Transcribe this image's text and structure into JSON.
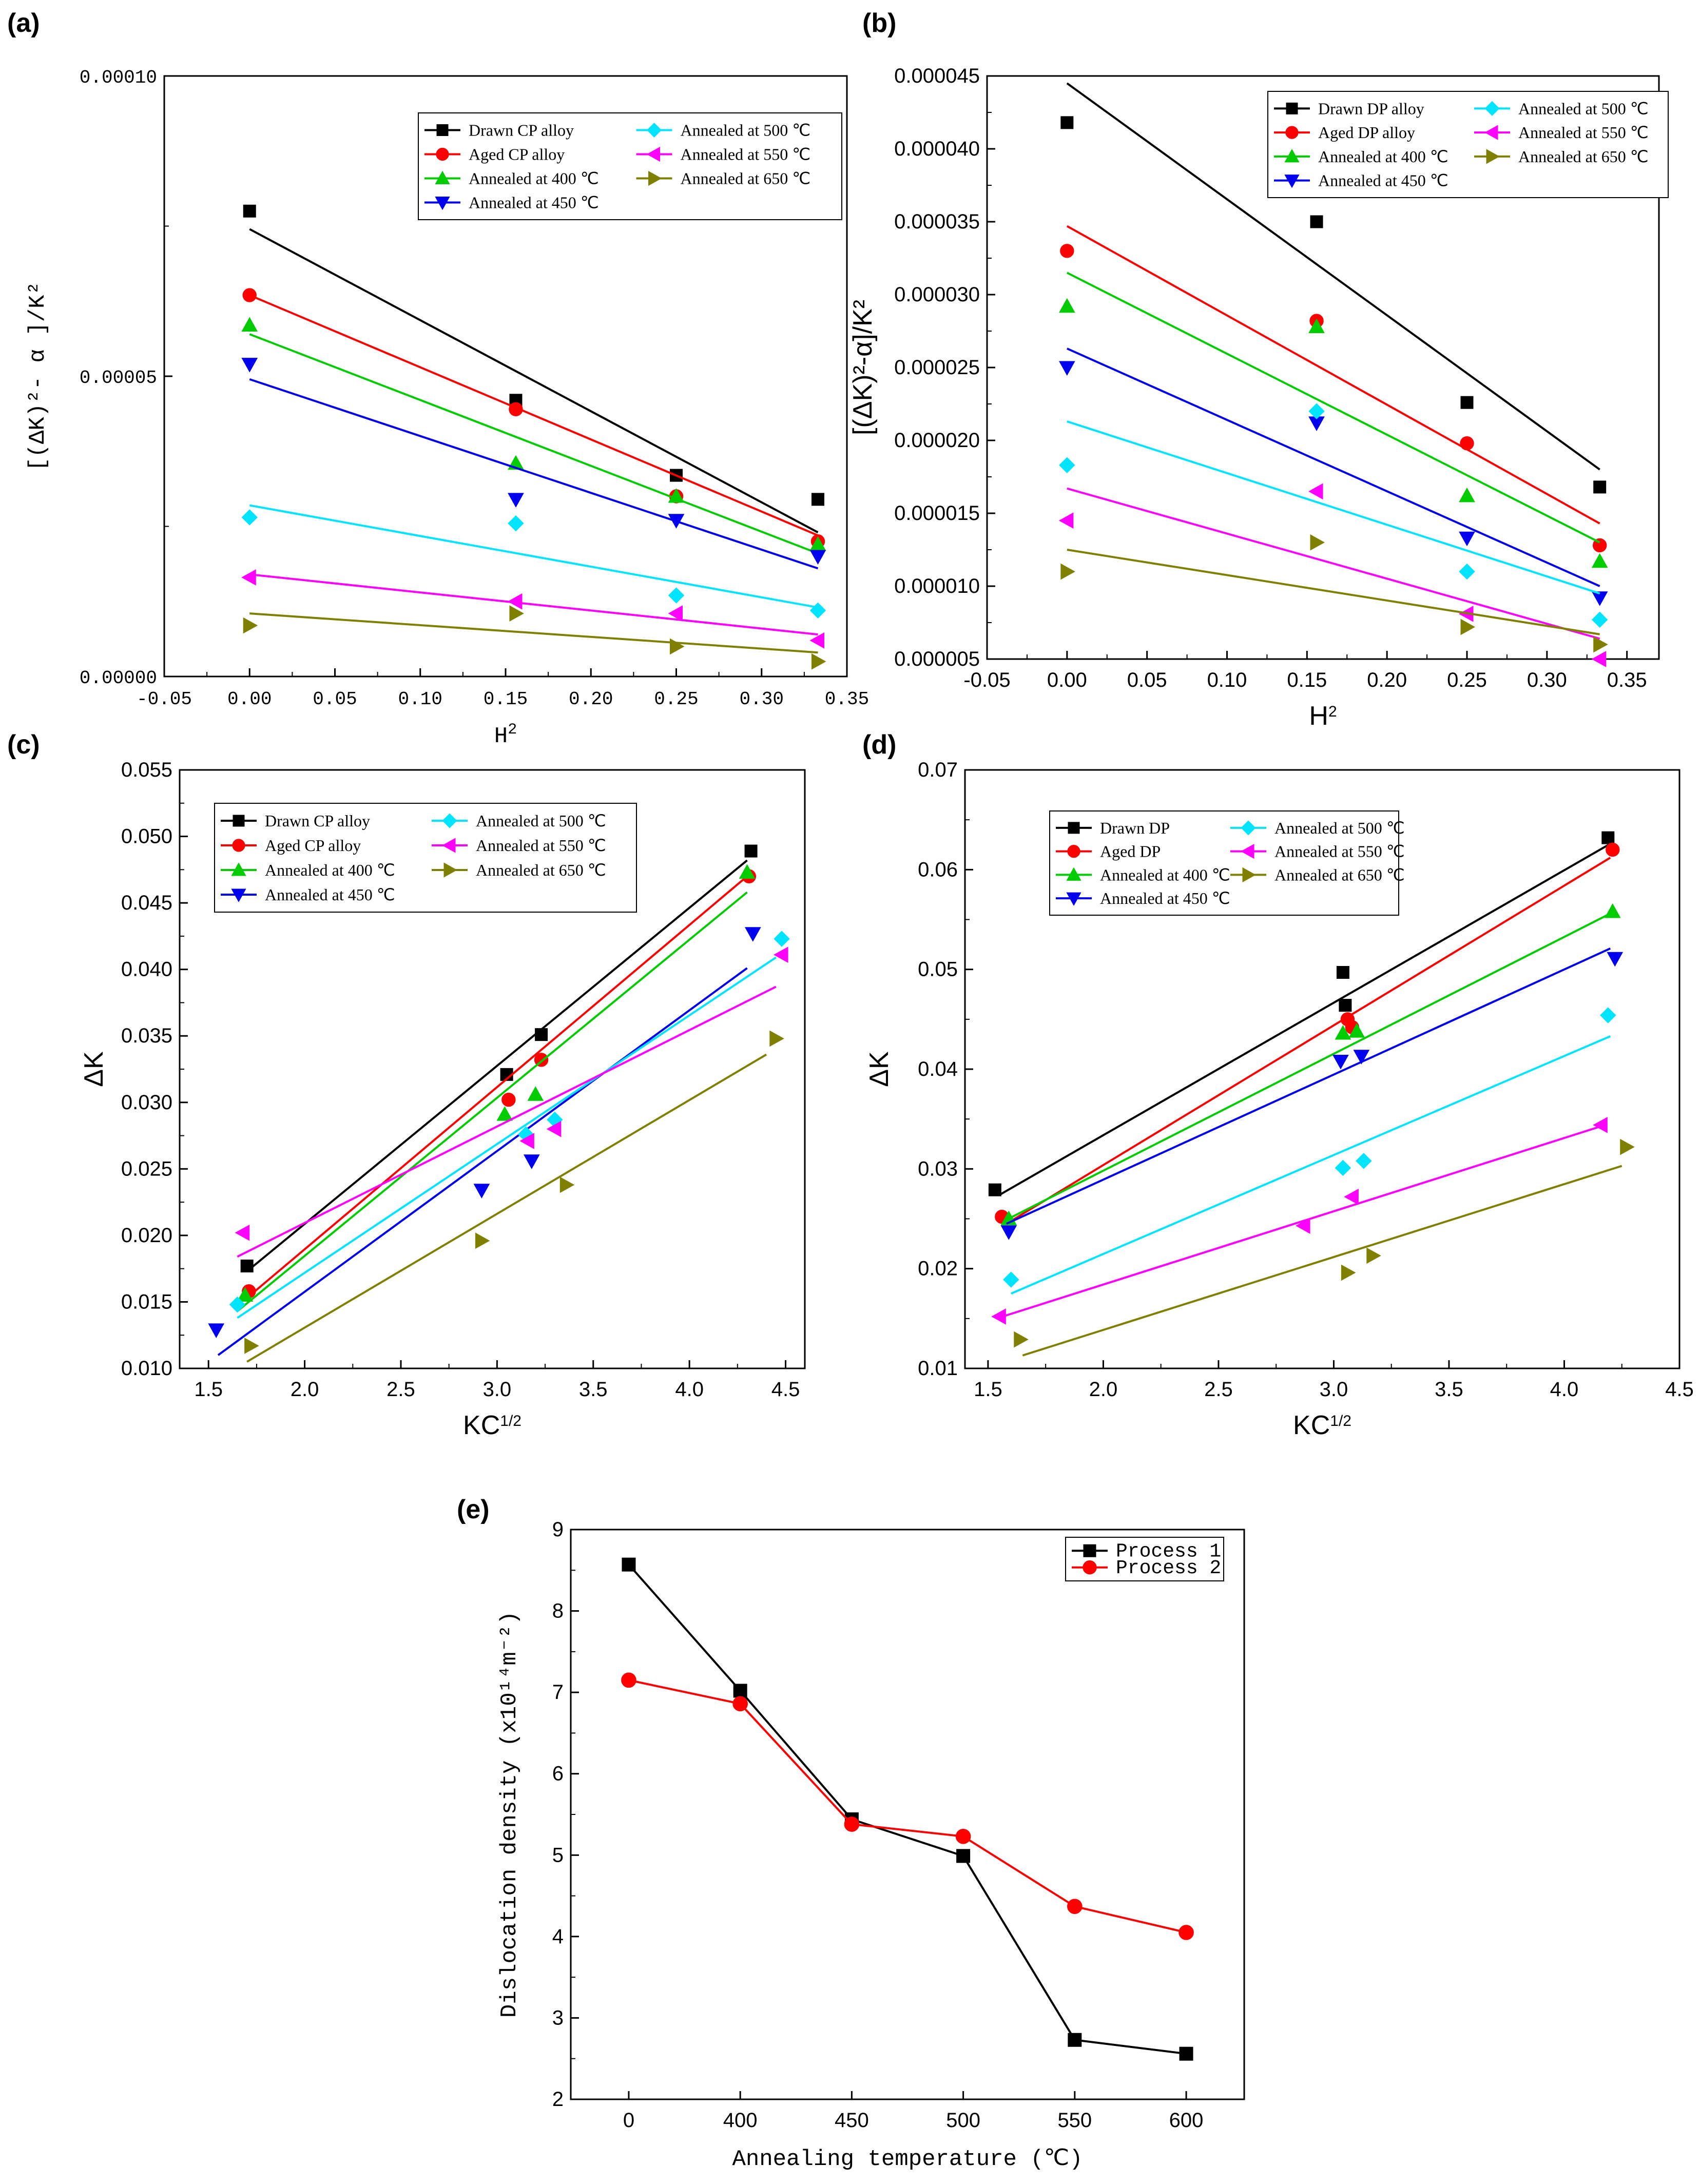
{
  "colors": {
    "black": "#000000",
    "red": "#ff0000",
    "green": "#00cc00",
    "blue": "#0000ee",
    "cyan": "#00e5ff",
    "magenta": "#ff00ff",
    "olive": "#808000"
  },
  "chart_data": [
    {
      "panel": "(a)",
      "type": "scatter",
      "xlabel": "H",
      "xlabel_sup": "2",
      "ylabel": "[(ΔK)²- α ]/K²",
      "xlim": [
        -0.05,
        0.35
      ],
      "ylim": [
        0.0,
        0.0001
      ],
      "xticks": [
        "-0.05",
        "0.00",
        "0.05",
        "0.10",
        "0.15",
        "0.20",
        "0.25",
        "0.30",
        "0.35"
      ],
      "yticks": [
        "0.00000",
        "0.00005",
        "0.00010"
      ],
      "legend": {
        "position": "top-right"
      },
      "x": [
        0.0,
        0.156,
        0.25,
        0.333
      ],
      "series": [
        {
          "name": "Drawn CP alloy",
          "color": "#000000",
          "marker": "square",
          "values": [
            7.75e-05,
            4.6e-05,
            3.35e-05,
            2.95e-05
          ],
          "fit": [
            7.45e-05,
            2.4e-05
          ]
        },
        {
          "name": "Aged CP alloy",
          "color": "#ff0000",
          "marker": "circle",
          "values": [
            6.35e-05,
            4.45e-05,
            3e-05,
            2.25e-05
          ],
          "fit": [
            6.35e-05,
            2.35e-05
          ]
        },
        {
          "name": "Annealed at 400 ℃",
          "color": "#00cc00",
          "marker": "triangle-up",
          "values": [
            5.85e-05,
            3.55e-05,
            3e-05,
            2.2e-05
          ],
          "fit": [
            5.7e-05,
            2.05e-05
          ]
        },
        {
          "name": "Annealed at 450 ℃",
          "color": "#0000ee",
          "marker": "triangle-down",
          "values": [
            5.2e-05,
            2.95e-05,
            2.6e-05,
            2e-05
          ],
          "fit": [
            4.95e-05,
            1.8e-05
          ]
        },
        {
          "name": "Annealed at 500 ℃",
          "color": "#00e5ff",
          "marker": "diamond",
          "values": [
            2.65e-05,
            2.55e-05,
            1.35e-05,
            1.1e-05
          ],
          "fit": [
            2.85e-05,
            1.15e-05
          ]
        },
        {
          "name": "Annealed at 550 ℃",
          "color": "#ff00ff",
          "marker": "triangle-left",
          "values": [
            1.65e-05,
            1.25e-05,
            1.05e-05,
            6e-06
          ],
          "fit": [
            1.7e-05,
            7e-06
          ]
        },
        {
          "name": "Annealed at 650 ℃",
          "color": "#808000",
          "marker": "triangle-right",
          "values": [
            8.5e-06,
            1.05e-05,
            5e-06,
            2.5e-06
          ],
          "fit": [
            1.05e-05,
            4e-06
          ]
        }
      ]
    },
    {
      "panel": "(b)",
      "type": "scatter",
      "xlabel": "H",
      "xlabel_sup": "2",
      "ylabel": "[(ΔK)²-α]/K²",
      "xlim": [
        -0.05,
        0.37
      ],
      "ylim": [
        5e-06,
        4.5e-05
      ],
      "xticks": [
        "-0.05",
        "0.00",
        "0.05",
        "0.10",
        "0.15",
        "0.20",
        "0.25",
        "0.30",
        "0.35"
      ],
      "yticks": [
        "0.000005",
        "0.000010",
        "0.000015",
        "0.000020",
        "0.000025",
        "0.000030",
        "0.000035",
        "0.000040",
        "0.000045"
      ],
      "legend": {
        "position": "top-right"
      },
      "x": [
        0.0,
        0.156,
        0.25,
        0.333
      ],
      "series": [
        {
          "name": "Drawn DP alloy",
          "color": "#000000",
          "marker": "square",
          "values": [
            4.18e-05,
            3.5e-05,
            2.26e-05,
            1.68e-05
          ],
          "fit": [
            4.45e-05,
            1.8e-05
          ]
        },
        {
          "name": "Aged DP alloy",
          "color": "#ff0000",
          "marker": "circle",
          "values": [
            3.3e-05,
            2.82e-05,
            1.98e-05,
            1.28e-05
          ],
          "fit": [
            3.47e-05,
            1.43e-05
          ]
        },
        {
          "name": "Annealed at 400 ℃",
          "color": "#00cc00",
          "marker": "triangle-up",
          "values": [
            2.92e-05,
            2.78e-05,
            1.62e-05,
            1.17e-05
          ],
          "fit": [
            3.15e-05,
            1.3e-05
          ]
        },
        {
          "name": "Annealed at 450 ℃",
          "color": "#0000ee",
          "marker": "triangle-down",
          "values": [
            2.5e-05,
            2.12e-05,
            1.33e-05,
            9.2e-06
          ],
          "fit": [
            2.63e-05,
            1e-05
          ]
        },
        {
          "name": "Annealed at 500 ℃",
          "color": "#00e5ff",
          "marker": "diamond",
          "values": [
            1.83e-05,
            2.2e-05,
            1.1e-05,
            7.7e-06
          ],
          "fit": [
            2.13e-05,
            9.5e-06
          ]
        },
        {
          "name": "Annealed at 550 ℃",
          "color": "#ff00ff",
          "marker": "triangle-left",
          "values": [
            1.45e-05,
            1.65e-05,
            8.1e-06,
            5e-06
          ],
          "fit": [
            1.67e-05,
            6.4e-06
          ]
        },
        {
          "name": "Annealed at 650 ℃",
          "color": "#808000",
          "marker": "triangle-right",
          "values": [
            1.1e-05,
            1.3e-05,
            7.2e-06,
            6e-06
          ],
          "fit": [
            1.25e-05,
            6.7e-06
          ]
        }
      ]
    },
    {
      "panel": "(c)",
      "type": "scatter",
      "xlabel": "KC",
      "xlabel_sup": "1/2",
      "ylabel": "ΔK",
      "xlim": [
        1.35,
        4.6
      ],
      "ylim": [
        0.01,
        0.055
      ],
      "xticks": [
        "1.5",
        "2.0",
        "2.5",
        "3.0",
        "3.5",
        "4.0",
        "4.5"
      ],
      "yticks": [
        "0.010",
        "0.015",
        "0.020",
        "0.025",
        "0.030",
        "0.035",
        "0.040",
        "0.045",
        "0.050",
        "0.055"
      ],
      "legend": {
        "position": "top-left"
      },
      "series": [
        {
          "name": "Drawn CP alloy",
          "color": "#000000",
          "marker": "square",
          "x": [
            1.7,
            3.05,
            3.23,
            4.32
          ],
          "values": [
            0.0177,
            0.0321,
            0.0351,
            0.0489
          ],
          "fit_x": [
            1.7,
            4.3
          ],
          "fit": [
            0.0173,
            0.0482
          ]
        },
        {
          "name": "Aged CP alloy",
          "color": "#ff0000",
          "marker": "circle",
          "x": [
            1.71,
            3.06,
            3.23,
            4.31
          ],
          "values": [
            0.0158,
            0.0302,
            0.0332,
            0.047
          ],
          "fit_x": [
            1.7,
            4.3
          ],
          "fit": [
            0.0153,
            0.047
          ]
        },
        {
          "name": "Annealed at 400 ℃",
          "color": "#00cc00",
          "marker": "triangle-up",
          "x": [
            1.69,
            3.04,
            3.2,
            4.3
          ],
          "values": [
            0.0155,
            0.0291,
            0.0306,
            0.0473
          ],
          "fit_x": [
            1.65,
            4.3
          ],
          "fit": [
            0.0143,
            0.0458
          ]
        },
        {
          "name": "Annealed at 450 ℃",
          "color": "#0000ee",
          "marker": "triangle-down",
          "x": [
            1.54,
            2.92,
            3.18,
            4.33
          ],
          "values": [
            0.0129,
            0.0234,
            0.0256,
            0.0427
          ],
          "fit_x": [
            1.55,
            4.3
          ],
          "fit": [
            0.011,
            0.0401
          ]
        },
        {
          "name": "Annealed at 500 ℃",
          "color": "#00e5ff",
          "marker": "diamond",
          "x": [
            1.65,
            3.15,
            3.3,
            4.48
          ],
          "values": [
            0.0148,
            0.0276,
            0.0287,
            0.0423
          ],
          "fit_x": [
            1.65,
            4.45
          ],
          "fit": [
            0.0138,
            0.0409
          ]
        },
        {
          "name": "Annealed at 550 ℃",
          "color": "#ff00ff",
          "marker": "triangle-left",
          "x": [
            1.68,
            3.16,
            3.3,
            4.48
          ],
          "values": [
            0.0202,
            0.0271,
            0.028,
            0.0411
          ],
          "fit_x": [
            1.65,
            4.45
          ],
          "fit": [
            0.0184,
            0.0387
          ]
        },
        {
          "name": "Annealed at 650 ℃",
          "color": "#808000",
          "marker": "triangle-right",
          "x": [
            1.72,
            2.92,
            3.36,
            4.45
          ],
          "values": [
            0.0117,
            0.0196,
            0.0238,
            0.0348
          ],
          "fit_x": [
            1.7,
            4.4
          ],
          "fit": [
            0.0105,
            0.0336
          ]
        }
      ]
    },
    {
      "panel": "(d)",
      "type": "scatter",
      "xlabel": "KC",
      "xlabel_sup": "1/2",
      "ylabel": "ΔK",
      "xlim": [
        1.4,
        4.5
      ],
      "ylim": [
        0.01,
        0.07
      ],
      "xticks": [
        "1.5",
        "2.0",
        "2.5",
        "3.0",
        "3.5",
        "4.0",
        "4.5"
      ],
      "yticks": [
        "0.01",
        "0.02",
        "0.03",
        "0.04",
        "0.05",
        "0.06",
        "0.07"
      ],
      "legend": {
        "position": "top-left"
      },
      "series": [
        {
          "name": "Drawn DP",
          "color": "#000000",
          "marker": "square",
          "x": [
            1.53,
            3.04,
            3.05,
            4.19
          ],
          "values": [
            0.0279,
            0.0497,
            0.0464,
            0.0632
          ],
          "fit_x": [
            1.55,
            4.2
          ],
          "fit": [
            0.0274,
            0.0626
          ]
        },
        {
          "name": "Aged DP",
          "color": "#ff0000",
          "marker": "circle",
          "x": [
            1.56,
            3.06,
            3.08,
            4.21
          ],
          "values": [
            0.0252,
            0.045,
            0.0442,
            0.062
          ],
          "fit_x": [
            1.58,
            4.2
          ],
          "fit": [
            0.0245,
            0.0612
          ]
        },
        {
          "name": "Annealed at 400 ℃",
          "color": "#00cc00",
          "marker": "triangle-up",
          "x": [
            1.59,
            3.04,
            3.1,
            4.21
          ],
          "values": [
            0.025,
            0.0436,
            0.0438,
            0.0558
          ],
          "fit_x": [
            1.58,
            4.2
          ],
          "fit": [
            0.0249,
            0.0556
          ]
        },
        {
          "name": "Annealed at 450 ℃",
          "color": "#0000ee",
          "marker": "triangle-down",
          "x": [
            1.59,
            3.03,
            3.12,
            4.22
          ],
          "values": [
            0.0237,
            0.0408,
            0.0413,
            0.0511
          ],
          "fit_x": [
            1.58,
            4.2
          ],
          "fit": [
            0.0245,
            0.0521
          ]
        },
        {
          "name": "Annealed at 500 ℃",
          "color": "#00e5ff",
          "marker": "diamond",
          "x": [
            1.6,
            3.04,
            3.13,
            4.19
          ],
          "values": [
            0.0189,
            0.0301,
            0.0308,
            0.0454
          ],
          "fit_x": [
            1.6,
            4.2
          ],
          "fit": [
            0.0175,
            0.0433
          ]
        },
        {
          "name": "Annealed at 550 ℃",
          "color": "#ff00ff",
          "marker": "triangle-left",
          "x": [
            1.55,
            2.87,
            3.08,
            4.16
          ],
          "values": [
            0.0152,
            0.0243,
            0.0272,
            0.0344
          ],
          "fit_x": [
            1.55,
            4.15
          ],
          "fit": [
            0.0151,
            0.0342
          ]
        },
        {
          "name": "Annealed at 650 ℃",
          "color": "#808000",
          "marker": "triangle-right",
          "x": [
            1.64,
            3.06,
            3.17,
            4.27
          ],
          "values": [
            0.0129,
            0.0196,
            0.0213,
            0.0322
          ],
          "fit_x": [
            1.65,
            4.25
          ],
          "fit": [
            0.0113,
            0.0303
          ]
        }
      ]
    },
    {
      "panel": "(e)",
      "type": "line",
      "xlabel": "Annealing temperature (℃)",
      "ylabel": "Dislocation density (x10¹⁴m⁻²)",
      "categories": [
        "0",
        "400",
        "450",
        "500",
        "550",
        "600"
      ],
      "ylim": [
        2,
        9
      ],
      "yticks": [
        "2",
        "3",
        "4",
        "5",
        "6",
        "7",
        "8",
        "9"
      ],
      "legend": {
        "position": "top-right"
      },
      "series": [
        {
          "name": "Process 1",
          "color": "#000000",
          "marker": "square",
          "values": [
            8.57,
            7.02,
            5.44,
            4.99,
            2.73,
            2.56
          ]
        },
        {
          "name": "Process 2",
          "color": "#ff0000",
          "marker": "circle",
          "values": [
            7.15,
            6.86,
            5.38,
            5.23,
            4.37,
            4.05
          ]
        }
      ]
    }
  ]
}
